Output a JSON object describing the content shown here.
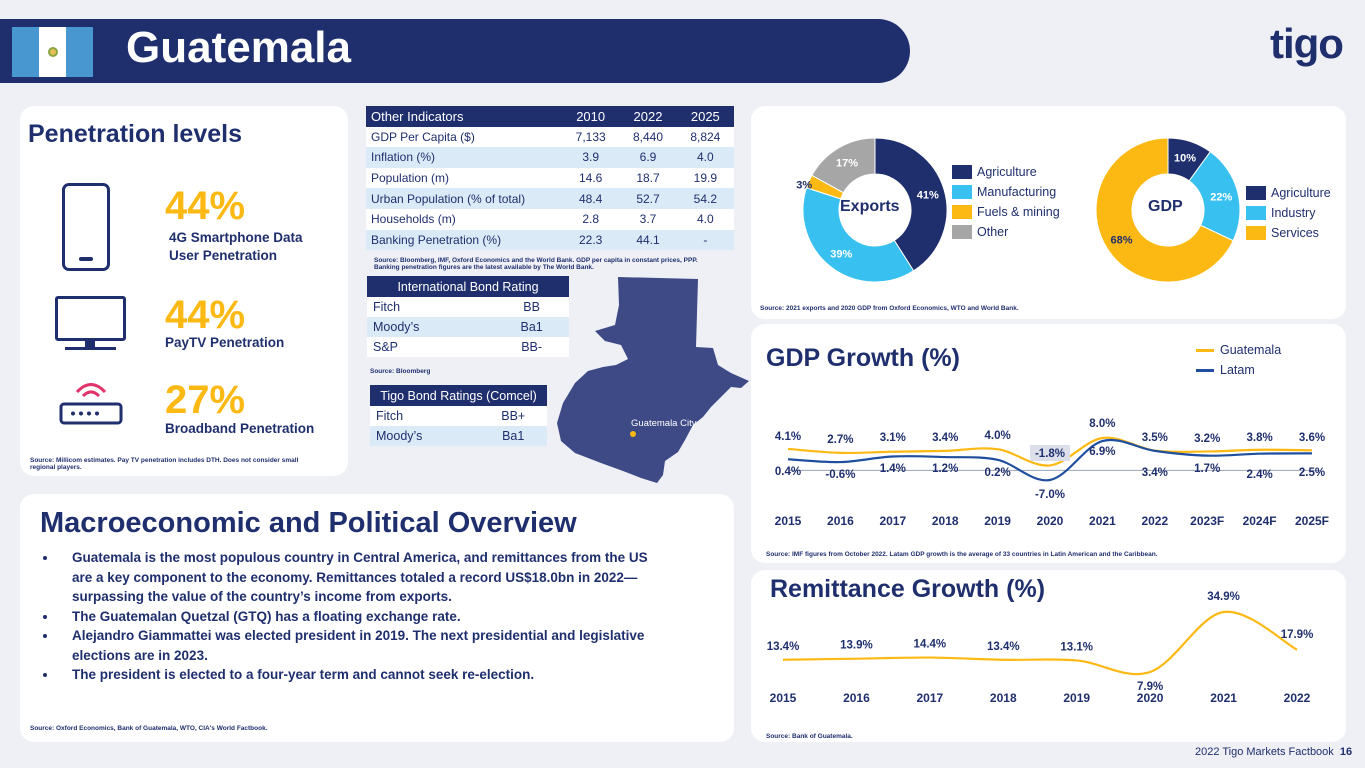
{
  "header": {
    "title": "Guatemala",
    "logo_text": "tigo"
  },
  "penetration": {
    "title": "Penetration levels",
    "items": [
      {
        "value": "44%",
        "label": "4G Smartphone Data User Penetration",
        "icon": "smartphone-icon"
      },
      {
        "value": "44%",
        "label": "PayTV Penetration",
        "icon": "tv-icon"
      },
      {
        "value": "27%",
        "label": "Broadband Penetration",
        "icon": "router-icon"
      }
    ],
    "source": "Source: Millicom estimates. Pay TV penetration includes DTH.   Does not consider small regional players."
  },
  "indicators": {
    "headers": [
      "Other Indicators",
      "2010",
      "2022",
      "2025"
    ],
    "rows": [
      [
        "GDP Per Capita ($)",
        "7,133",
        "8,440",
        "8,824"
      ],
      [
        "Inflation (%)",
        "3.9",
        "6.9",
        "4.0"
      ],
      [
        "Population (m)",
        "14.6",
        "18.7",
        "19.9"
      ],
      [
        "Urban Population (% of total)",
        "48.4",
        "52.7",
        "54.2"
      ],
      [
        "Households (m)",
        "2.8",
        "3.7",
        "4.0"
      ],
      [
        "Banking Penetration (%)",
        "22.3",
        "44.1",
        "-"
      ]
    ],
    "source": "Source: Bloomberg, IMF, Oxford Economics and the World Bank. GDP per capita in constant prices, PPP. Banking penetration figures are the latest available by The World Bank."
  },
  "intl_bond": {
    "title": "International Bond Rating",
    "rows": [
      [
        "Fitch",
        "BB"
      ],
      [
        "Moody’s",
        "Ba1"
      ],
      [
        "S&P",
        "BB-"
      ]
    ],
    "source": "Source: Bloomberg"
  },
  "tigo_bond": {
    "title": "Tigo Bond Ratings (Comcel)",
    "rows": [
      [
        "Fitch",
        "BB+"
      ],
      [
        "Moody’s",
        "Ba1"
      ]
    ]
  },
  "map": {
    "city_label": "Guatemala City"
  },
  "exports": {
    "center_label": "Exports",
    "legend": [
      "Agriculture",
      "Manufacturing",
      "Fuels & mining",
      "Other"
    ],
    "colors": [
      "#1f2f6e",
      "#38c1f0",
      "#fdb913",
      "#a6a6a6"
    ]
  },
  "gdp_pie": {
    "center_label": "GDP",
    "legend": [
      "Agriculture",
      "Industry",
      "Services"
    ],
    "colors": [
      "#1f2f6e",
      "#38c1f0",
      "#fdb913"
    ]
  },
  "pie_source": "Source: 2021 exports and 2020 GDP from Oxford Economics, WTO and World Bank.",
  "gdp_growth": {
    "title": "GDP Growth (%)",
    "source": "Source: IMF figures from October 2022. Latam GDP growth is the average of 33 countries in Latin American and the Caribbean."
  },
  "remittance": {
    "title": "Remittance Growth (%)",
    "source": "Source: Bank of Guatemala."
  },
  "overview": {
    "title": "Macroeconomic and Political Overview",
    "bullets": [
      "Guatemala is the most populous country in Central America, and remittances from the US are a key component to the economy. Remittances totaled a record US$18.0bn in 2022—surpassing the value of the country’s income from exports.",
      "The Guatemalan Quetzal (GTQ) has a floating exchange rate.",
      "Alejandro Giammattei was elected president in 2019. The next presidential and legislative elections are in 2023.",
      "The president is elected to a four-year term and cannot seek re-election."
    ],
    "source": "Source: Oxford Economics, Bank of Guatemala, WTO, CIA's World Factbook."
  },
  "footer": {
    "text": "2022 Tigo Markets Factbook",
    "page": "16"
  },
  "chart_data": [
    {
      "type": "pie",
      "title": "Exports",
      "categories": [
        "Agriculture",
        "Manufacturing",
        "Fuels & mining",
        "Other"
      ],
      "values": [
        41,
        39,
        3,
        17
      ],
      "labels": [
        "41%",
        "39%",
        "3%",
        "17%"
      ]
    },
    {
      "type": "pie",
      "title": "GDP",
      "categories": [
        "Agriculture",
        "Industry",
        "Services"
      ],
      "values": [
        10,
        22,
        68
      ],
      "labels": [
        "10%",
        "22%",
        "68%"
      ]
    },
    {
      "type": "line",
      "categories": [
        "2015",
        "2016",
        "2017",
        "2018",
        "2019",
        "2020",
        "2021",
        "2022",
        "2023F",
        "2024F",
        "2025F"
      ],
      "series": [
        {
          "name": "Guatemala",
          "values": [
            4.1,
            2.7,
            3.1,
            3.4,
            4.0,
            -1.8,
            8.0,
            3.5,
            3.2,
            3.8,
            3.6
          ],
          "labels": [
            "4.1%",
            "2.7%",
            "3.1%",
            "3.4%",
            "4.0%",
            "-1.8%",
            "8.0%",
            "3.5%",
            "3.2%",
            "3.8%",
            "3.6%"
          ],
          "color": "#fdb913"
        },
        {
          "name": "Latam",
          "values": [
            0.4,
            -0.6,
            1.4,
            1.2,
            0.2,
            -7.0,
            6.9,
            3.4,
            1.7,
            2.4,
            2.5
          ],
          "labels": [
            "0.4%",
            "-0.6%",
            "1.4%",
            "1.2%",
            "0.2%",
            "-7.0%",
            "6.9%",
            "3.4%",
            "1.7%",
            "2.4%",
            "2.5%"
          ],
          "color": "#1f4f9e"
        }
      ]
    },
    {
      "type": "line",
      "categories": [
        "2015",
        "2016",
        "2017",
        "2018",
        "2019",
        "2020",
        "2021",
        "2022"
      ],
      "series": [
        {
          "values": [
            13.4,
            13.9,
            14.4,
            13.4,
            13.1,
            7.9,
            34.9,
            17.9
          ],
          "labels": [
            "13.4%",
            "13.9%",
            "14.4%",
            "13.4%",
            "13.1%",
            "7.9%",
            "34.9%",
            "17.9%"
          ],
          "color": "#fdb913"
        }
      ]
    }
  ]
}
